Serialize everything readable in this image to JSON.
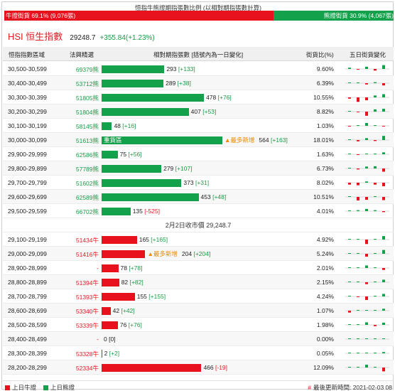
{
  "ratio": {
    "title": "恒指牛熊證期指張數比例 (以相對期指張數計算)",
    "bull_label": "牛證街貨 69.1% (9,076張)",
    "bear_label": "熊證街貨 30.9% (4,067張)",
    "bull_fraction": 0.691,
    "colors": {
      "bull": "#e8121e",
      "bear": "#14a14b"
    }
  },
  "index": {
    "name": "HSI 恒生指數",
    "value": "29248.7",
    "change": "+355.84(+1.23%)"
  },
  "columns": {
    "range": "恒指指數區域",
    "code": "法興精選",
    "bar": "相對期指張數 [括號內為一日變化]",
    "pct": "街貨比(%)",
    "trend": "五日街貨變化"
  },
  "bear_rows": [
    {
      "range": "30,500-30,599",
      "code": "69379熊",
      "contracts": 293,
      "change": "[+133]",
      "pct": "9.60%",
      "spark": [
        0.2,
        -0.1,
        0.35,
        -0.25,
        0.6
      ]
    },
    {
      "range": "30,400-30,499",
      "code": "53712熊",
      "contracts": 289,
      "change": "[+38]",
      "pct": "6.39%",
      "spark": [
        0.05,
        0.1,
        -0.2,
        0.15,
        -0.35
      ]
    },
    {
      "range": "30,300-30,399",
      "code": "51805熊",
      "contracts": 478,
      "change": "[+76]",
      "pct": "10.55%",
      "spark": [
        -0.2,
        -0.7,
        -0.45,
        0.3,
        0.5
      ]
    },
    {
      "range": "30,200-30,299",
      "code": "51804熊",
      "contracts": 407,
      "change": "[+53]",
      "pct": "8.82%",
      "spark": [
        0.05,
        -0.1,
        -0.65,
        0.35,
        0.45
      ]
    },
    {
      "range": "30,100-30,199",
      "code": "58145熊",
      "contracts": 48,
      "change": "[+16]",
      "pct": "1.03%",
      "spark": [
        -0.1,
        0.1,
        0.45,
        0.05,
        -0.1
      ]
    },
    {
      "range": "30,000-30,099",
      "code": "51613熊",
      "contracts": 564,
      "change": "[+163]",
      "pct": "18.01%",
      "heavy": "重貨區",
      "new_tag": "▲最多新增",
      "spark": [
        0.1,
        -0.2,
        0.3,
        -0.15,
        0.65
      ]
    },
    {
      "range": "29,900-29,999",
      "code": "62586熊",
      "contracts": 75,
      "change": "[+56]",
      "pct": "1.63%",
      "spark": [
        0.05,
        -0.05,
        0.05,
        0.1,
        0.3
      ]
    },
    {
      "range": "29,800-29,899",
      "code": "57789熊",
      "contracts": 279,
      "change": "[+107]",
      "pct": "6.73%",
      "spark": [
        0.05,
        -0.15,
        0.3,
        0.35,
        -0.5
      ]
    },
    {
      "range": "29,700-29,799",
      "code": "51602熊",
      "contracts": 373,
      "change": "[+31]",
      "pct": "8.02%",
      "spark": [
        -0.3,
        -0.4,
        0.2,
        -0.3,
        -0.55
      ]
    },
    {
      "range": "29,600-29,699",
      "code": "62589熊",
      "contracts": 453,
      "change": "[+48]",
      "pct": "10.51%",
      "spark": [
        0.05,
        -0.55,
        -0.45,
        0.1,
        -0.5
      ]
    },
    {
      "range": "29,500-29,599",
      "code": "66702熊",
      "contracts": 135,
      "change": "[-525]",
      "pct": "4.01%",
      "spark": [
        0.1,
        0.15,
        0.35,
        0.15,
        -0.15
      ]
    }
  ],
  "close_label": "2月2日收市價 29,248.7",
  "bull_rows": [
    {
      "range": "29,100-29,199",
      "code": "51434牛",
      "contracts": 165,
      "change": "[+165]",
      "pct": "4.92%",
      "spark": [
        0.05,
        0.1,
        -0.7,
        0.05,
        0.55
      ]
    },
    {
      "range": "29,000-29,099",
      "code": "51416牛",
      "contracts": 204,
      "change": "[+204]",
      "pct": "5.24%",
      "new_tag": "▲最多新增",
      "spark": [
        0.05,
        0.1,
        -0.45,
        0.05,
        0.6
      ]
    },
    {
      "range": "28,900-28,999",
      "code": "-",
      "contracts": 78,
      "change": "[+78]",
      "pct": "2.01%",
      "spark": [
        0.05,
        0.05,
        0.4,
        0.05,
        -0.3
      ]
    },
    {
      "range": "28,800-28,899",
      "code": "51394牛",
      "contracts": 82,
      "change": "[+82]",
      "pct": "2.15%",
      "spark": [
        0.05,
        0.05,
        -0.3,
        0.05,
        0.4
      ]
    },
    {
      "range": "28,700-28,799",
      "code": "51393牛",
      "contracts": 155,
      "change": "[+155]",
      "pct": "4.24%",
      "spark": [
        0.05,
        -0.05,
        -0.55,
        0.05,
        0.4
      ]
    },
    {
      "range": "28,600-28,699",
      "code": "53340牛",
      "contracts": 42,
      "change": "[+42]",
      "pct": "1.07%",
      "spark": [
        -0.3,
        0.05,
        0.1,
        0.05,
        0.3
      ]
    },
    {
      "range": "28,500-28,599",
      "code": "53339牛",
      "contracts": 76,
      "change": "[+76]",
      "pct": "1.98%",
      "spark": [
        0.05,
        0.1,
        0.4,
        -0.2,
        0.35
      ]
    },
    {
      "range": "28,400-28,499",
      "code": "-",
      "contracts": 0,
      "change": "[0]",
      "pct": "0.00%",
      "spark": [
        0.05,
        0.05,
        0.05,
        0.05,
        0.05
      ]
    },
    {
      "range": "28,300-28,399",
      "code": "53328牛",
      "contracts": 2,
      "change": "[+2]",
      "pct": "0.05%",
      "spark": [
        0.05,
        0.05,
        0.05,
        0.05,
        0.2
      ]
    },
    {
      "range": "28,200-28,299",
      "code": "52334牛",
      "contracts": 466,
      "change": "[-19]",
      "pct": "12.09%",
      "spark": [
        0.05,
        0.1,
        0.45,
        0.1,
        -0.6
      ]
    }
  ],
  "bar_scale_max": 564,
  "spark_colors": {
    "up": "#14a14b",
    "down": "#e8121e"
  },
  "legend": {
    "bull": "上日牛證",
    "bear": "上日熊證"
  },
  "updated": {
    "marker": "#",
    "text": "最後更新時間: 2021-02-03 08"
  }
}
